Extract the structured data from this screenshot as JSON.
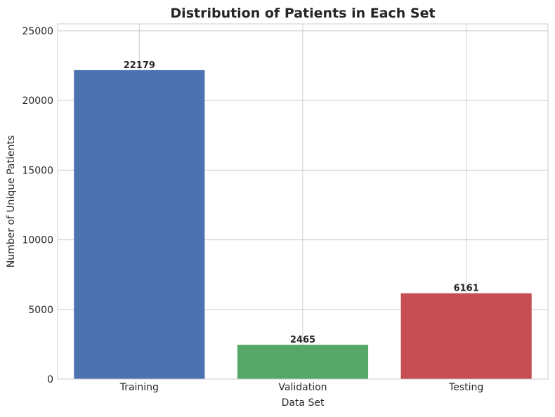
{
  "chart_data": {
    "type": "bar",
    "title": "Distribution of Patients in Each Set",
    "xlabel": "Data Set",
    "ylabel": "Number of Unique Patients",
    "categories": [
      "Training",
      "Validation",
      "Testing"
    ],
    "values": [
      22179,
      2465,
      6161
    ],
    "data_labels": [
      "22179",
      "2465",
      "6161"
    ],
    "colors": [
      "#4c72b0",
      "#55a868",
      "#c44e52"
    ],
    "ylim": [
      0,
      25500
    ],
    "yticks": [
      0,
      5000,
      10000,
      15000,
      20000,
      25000
    ],
    "ytick_labels": [
      "0",
      "5000",
      "10000",
      "15000",
      "20000",
      "25000"
    ],
    "grid": true,
    "legend": "none"
  }
}
